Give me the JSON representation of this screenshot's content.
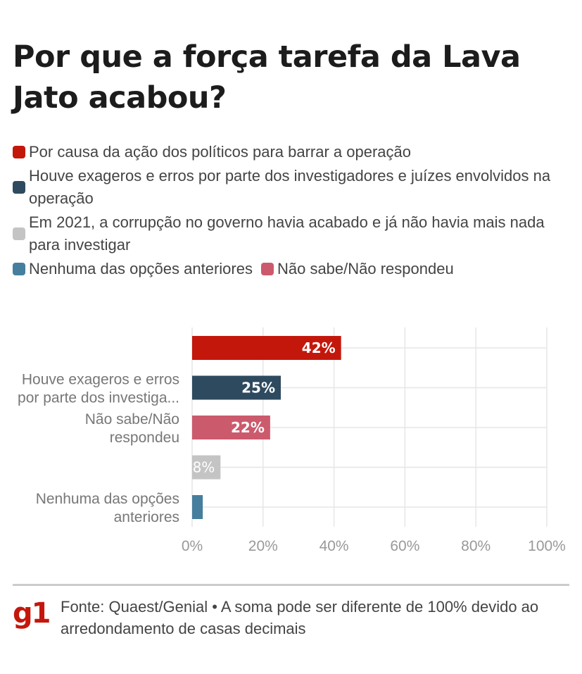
{
  "chart_data": {
    "type": "bar",
    "orientation": "horizontal",
    "title": "Por que a força tarefa da Lava Jato acabou?",
    "legend": [
      {
        "label": "Por causa da ação dos políticos para barrar a operação",
        "color": "#c4170c"
      },
      {
        "label": "Houve exageros e erros por parte dos investigadores e juízes envolvidos na operação",
        "color": "#2e4a5f"
      },
      {
        "label": "Em 2021, a corrupção no governo havia acabado e já não havia mais nada para investigar",
        "color": "#c4c4c4"
      },
      {
        "label": "Nenhuma das opções anteriores",
        "color": "#467e9e"
      },
      {
        "label": "Não sabe/Não respondeu",
        "color": "#cc5a6d"
      }
    ],
    "categories": [
      {
        "label": [
          "",
          ""
        ],
        "value": 42,
        "value_label": "42%",
        "color": "#c4170c"
      },
      {
        "label": [
          "Houve exageros e erros",
          "por parte dos investiga..."
        ],
        "value": 25,
        "value_label": "25%",
        "color": "#2e4a5f"
      },
      {
        "label": [
          "Não sabe/Não",
          "respondeu"
        ],
        "value": 22,
        "value_label": "22%",
        "color": "#cc5a6d"
      },
      {
        "label": [
          "",
          ""
        ],
        "value": 8,
        "value_label": "8%",
        "color": "#c4c4c4"
      },
      {
        "label": [
          "Nenhuma das opções",
          "anteriores"
        ],
        "value": 3,
        "value_label": "",
        "color": "#467e9e"
      }
    ],
    "xlim": [
      0,
      100
    ],
    "xticks": [
      "0%",
      "20%",
      "40%",
      "60%",
      "80%",
      "100%"
    ],
    "grid": true,
    "legend_position": "top"
  },
  "footer": {
    "logo": "g1",
    "source": "Fonte: Quaest/Genial • A soma pode ser diferente de 100% devido ao arredondamento de casas decimais"
  }
}
